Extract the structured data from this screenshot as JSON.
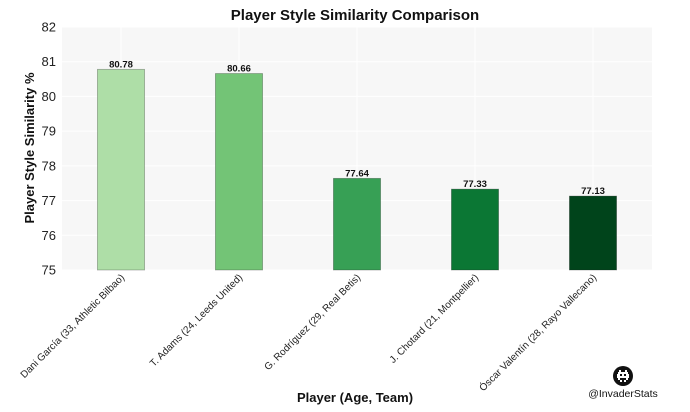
{
  "chart_data": {
    "type": "bar",
    "title": "Player Style Similarity Comparison",
    "xlabel": "Player (Age, Team)",
    "ylabel": "Player Style Similarity %",
    "ylim": [
      75,
      82
    ],
    "yticks": [
      "75",
      "76",
      "77",
      "78",
      "79",
      "80",
      "81",
      "82"
    ],
    "grid": true,
    "categories": [
      "Dani García (33, Athletic Bilbao)",
      "T. Adams (24, Leeds United)",
      "G. Rodríguez (29, Real Betis)",
      "J. Chotard (21, Montpellier)",
      "Óscar Valentín (28, Rayo Vallecano)"
    ],
    "values": [
      80.78,
      80.66,
      77.64,
      77.33,
      77.13
    ],
    "value_labels": [
      "80.78",
      "80.66",
      "77.64",
      "77.33",
      "77.13"
    ],
    "bar_colors": [
      "#aedea7",
      "#73c476",
      "#37a055",
      "#0b7734",
      "#00441b"
    ],
    "background_color": "#f7f7f7"
  },
  "credit": {
    "handle": "@InvaderStats",
    "icon": "space-invader-icon"
  }
}
